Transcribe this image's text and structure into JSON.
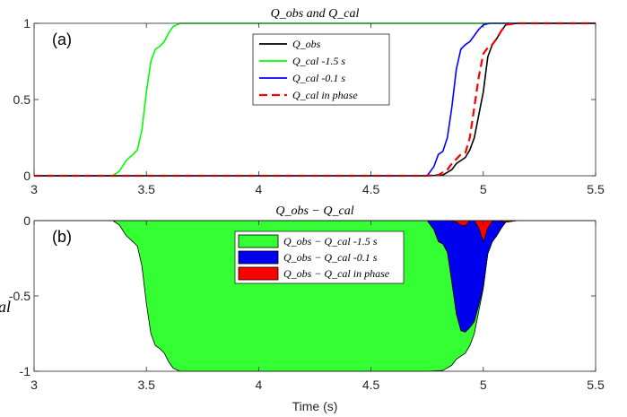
{
  "colors": {
    "obs": "#000000",
    "cal_m15": "#00ff00",
    "cal_m01": "#0000ff",
    "cal_phase": "#ff0000",
    "fill_m15": "#33ff33",
    "fill_m01": "#0000ee",
    "fill_phase": "#ff0000"
  },
  "chart_data": [
    {
      "type": "line",
      "panel_label": "(a)",
      "title": "Q_obs and Q_cal",
      "xlabel": "",
      "ylabel": "",
      "xlim": [
        3,
        5.5
      ],
      "ylim": [
        0,
        1
      ],
      "xticks": [
        3,
        3.5,
        4,
        4.5,
        5,
        5.5
      ],
      "xtick_labels": [
        "3",
        "3.5",
        "4",
        "4.5",
        "5",
        "5.5"
      ],
      "yticks": [
        0,
        0.5,
        1
      ],
      "ytick_labels": [
        "0",
        "0.5",
        "1"
      ],
      "grid": false,
      "legend_placement": "top-center",
      "series": [
        {
          "name": "Q_obs",
          "style": "solid",
          "color": "#000000",
          "x": [
            3,
            4.75,
            4.82,
            4.86,
            4.88,
            4.9,
            4.92,
            4.94,
            4.96,
            4.98,
            5.0,
            5.02,
            5.04,
            5.06,
            5.08,
            5.1,
            5.15,
            5.5
          ],
          "y": [
            0,
            0,
            0.005,
            0.04,
            0.08,
            0.1,
            0.12,
            0.17,
            0.25,
            0.4,
            0.55,
            0.78,
            0.86,
            0.9,
            0.95,
            0.99,
            1,
            1
          ]
        },
        {
          "name": "Q_cal -1.5 s",
          "style": "solid",
          "color": "#00ff00",
          "x": [
            3,
            3.35,
            3.38,
            3.41,
            3.44,
            3.46,
            3.48,
            3.5,
            3.52,
            3.54,
            3.56,
            3.58,
            3.6,
            3.62,
            3.65,
            5.5
          ],
          "y": [
            0,
            0,
            0.03,
            0.1,
            0.14,
            0.17,
            0.3,
            0.55,
            0.75,
            0.83,
            0.85,
            0.88,
            0.94,
            0.98,
            1,
            1
          ]
        },
        {
          "name": "Q_cal -0.1 s",
          "style": "solid",
          "color": "#0000ff",
          "x": [
            3,
            4.75,
            4.78,
            4.8,
            4.82,
            4.84,
            4.86,
            4.88,
            4.9,
            4.92,
            4.94,
            4.96,
            4.98,
            5.0,
            5.03,
            5.06,
            5.5
          ],
          "y": [
            0,
            0,
            0.06,
            0.14,
            0.16,
            0.25,
            0.45,
            0.7,
            0.83,
            0.86,
            0.88,
            0.92,
            0.96,
            0.99,
            1,
            1,
            1
          ]
        },
        {
          "name": "Q_cal in phase",
          "style": "dashed",
          "color": "#ff0000",
          "x": [
            3,
            4.74,
            4.8,
            4.84,
            4.86,
            4.88,
            4.9,
            4.92,
            4.94,
            4.96,
            4.98,
            5.0,
            5.02,
            5.04,
            5.06,
            5.08,
            5.1,
            5.15,
            5.5
          ],
          "y": [
            0,
            0,
            0.005,
            0.04,
            0.08,
            0.11,
            0.14,
            0.15,
            0.25,
            0.45,
            0.65,
            0.8,
            0.84,
            0.86,
            0.9,
            0.95,
            0.99,
            1,
            1
          ]
        }
      ]
    },
    {
      "type": "area",
      "panel_label": "(b)",
      "title": "Q_obs − Q_cal",
      "xlabel": "Time (s)",
      "ylabel": "al",
      "xlim": [
        3,
        5.5
      ],
      "ylim": [
        -1,
        0
      ],
      "xticks": [
        3,
        3.5,
        4,
        4.5,
        5,
        5.5
      ],
      "xtick_labels": [
        "3",
        "3.5",
        "4",
        "4.5",
        "5",
        "5.5"
      ],
      "yticks": [
        -1,
        -0.5,
        0
      ],
      "ytick_labels": [
        "-1",
        "-0.5",
        "0"
      ],
      "grid": false,
      "legend_placement": "top-center",
      "series": [
        {
          "name": "Q_obs − Q_cal -1.5 s",
          "color": "#33ff33",
          "x": [
            3,
            3.35,
            3.38,
            3.41,
            3.44,
            3.46,
            3.48,
            3.5,
            3.52,
            3.54,
            3.56,
            3.58,
            3.6,
            3.62,
            3.65,
            4.75,
            4.82,
            4.86,
            4.88,
            4.9,
            4.92,
            4.94,
            4.96,
            4.98,
            5.0,
            5.02,
            5.04,
            5.06,
            5.08,
            5.1,
            5.15,
            5.5
          ],
          "y": [
            0,
            0,
            -0.03,
            -0.1,
            -0.14,
            -0.17,
            -0.3,
            -0.55,
            -0.75,
            -0.83,
            -0.85,
            -0.88,
            -0.94,
            -0.98,
            -1,
            -1,
            -0.995,
            -0.96,
            -0.92,
            -0.9,
            -0.88,
            -0.83,
            -0.75,
            -0.6,
            -0.45,
            -0.22,
            -0.14,
            -0.1,
            -0.05,
            -0.01,
            0,
            0
          ]
        },
        {
          "name": "Q_obs − Q_cal -0.1 s",
          "color": "#0000ee",
          "x": [
            3,
            4.75,
            4.78,
            4.8,
            4.82,
            4.84,
            4.86,
            4.88,
            4.9,
            4.92,
            4.94,
            4.96,
            4.98,
            5.0,
            5.02,
            5.04,
            5.06,
            5.08,
            5.1,
            5.15,
            5.5
          ],
          "y": [
            0,
            0,
            -0.06,
            -0.14,
            -0.155,
            -0.21,
            -0.41,
            -0.62,
            -0.73,
            -0.74,
            -0.71,
            -0.67,
            -0.56,
            -0.44,
            -0.22,
            -0.14,
            -0.1,
            -0.05,
            -0.01,
            0,
            0
          ]
        },
        {
          "name": "Q_obs − Q_cal in phase",
          "color": "#ff0000",
          "x": [
            3,
            4.85,
            4.88,
            4.9,
            4.92,
            4.94,
            4.96,
            4.98,
            5.0,
            5.02,
            5.04,
            5.06,
            5.1,
            5.15,
            5.5
          ],
          "y": [
            0,
            0,
            -0.01,
            -0.03,
            -0.035,
            0,
            0,
            -0.05,
            -0.14,
            -0.05,
            -0.005,
            0,
            -0.01,
            0,
            0
          ]
        }
      ]
    }
  ]
}
